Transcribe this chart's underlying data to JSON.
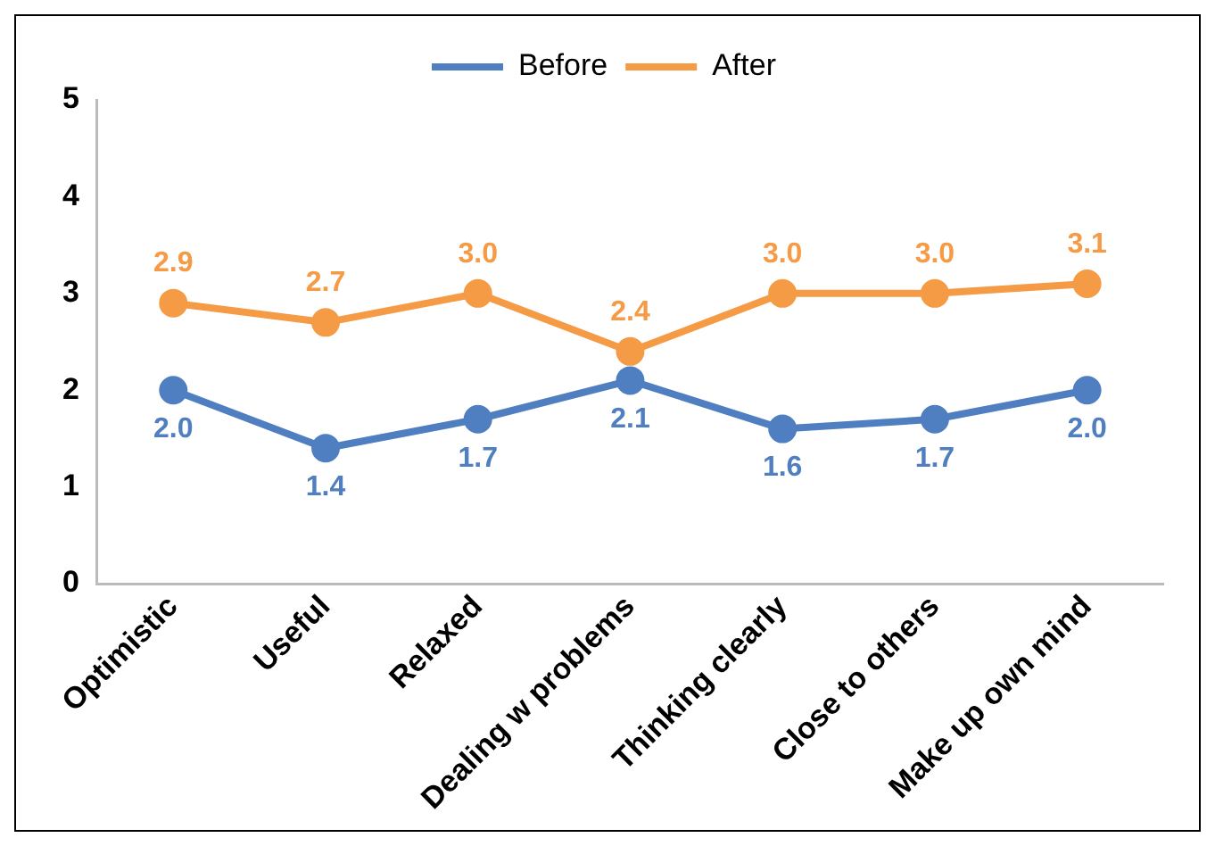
{
  "chart_data": {
    "type": "line",
    "categories": [
      "Optimistic",
      "Useful",
      "Relaxed",
      "Dealing w problems",
      "Thinking clearly",
      "Close to others",
      "Make up own mind"
    ],
    "series": [
      {
        "name": "Before",
        "color": "#4f7fc0",
        "values": [
          2.0,
          1.4,
          1.7,
          2.1,
          1.6,
          1.7,
          2.0
        ],
        "value_labels": [
          "2.0",
          "1.4",
          "1.7",
          "2.1",
          "1.6",
          "1.7",
          "2.0"
        ]
      },
      {
        "name": "After",
        "color": "#f59a45",
        "values": [
          2.9,
          2.7,
          3.0,
          2.4,
          3.0,
          3.0,
          3.1
        ],
        "value_labels": [
          "2.9",
          "2.7",
          "3.0",
          "2.4",
          "3.0",
          "3.0",
          "3.1"
        ]
      }
    ],
    "ylim": [
      0,
      5
    ],
    "yticks": [
      0,
      1,
      2,
      3,
      4,
      5
    ],
    "grid": false,
    "legend": "top",
    "marker": "circle",
    "line_style": "solid"
  }
}
